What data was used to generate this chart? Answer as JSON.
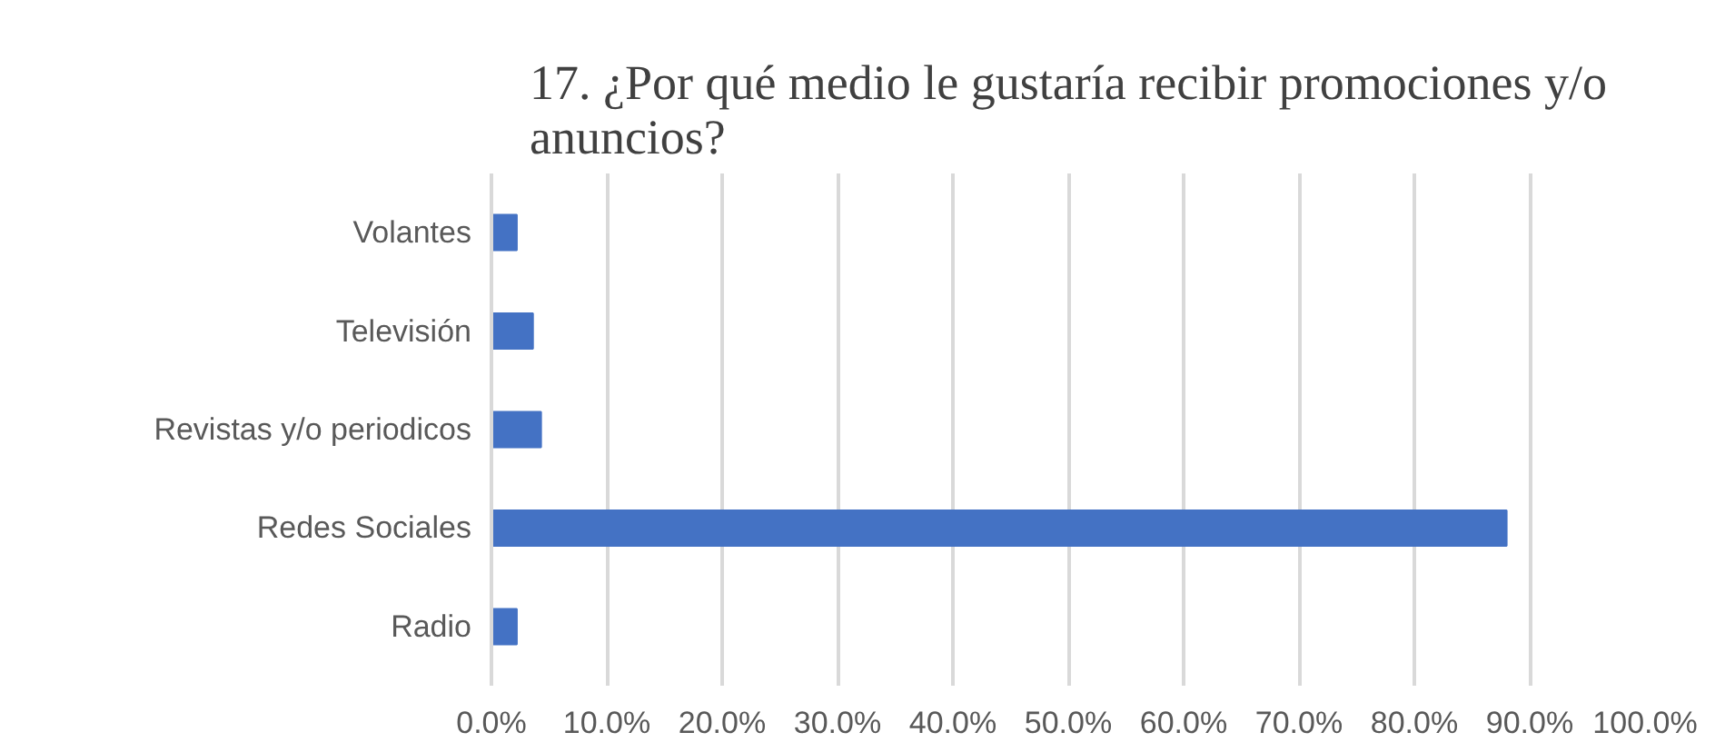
{
  "chart_data": {
    "type": "bar",
    "orientation": "horizontal",
    "title": "17. ¿Por qué medio le gustaría recibir promociones y/o anuncios?",
    "categories": [
      "Volantes",
      "Televisión",
      "Revistas y/o periodicos",
      "Redes Sociales",
      "Radio"
    ],
    "values": [
      0.022,
      0.036,
      0.043,
      0.88,
      0.022
    ],
    "color": "#4472c4",
    "xlim": [
      0,
      1
    ],
    "xticks": [
      {
        "value": 0,
        "label": "0.0%"
      },
      {
        "value": 0.1,
        "label": "10.0%"
      },
      {
        "value": 0.2,
        "label": "20.0%"
      },
      {
        "value": 0.3,
        "label": "30.0%"
      },
      {
        "value": 0.4,
        "label": "40.0%"
      },
      {
        "value": 0.5,
        "label": "50.0%"
      },
      {
        "value": 0.6,
        "label": "60.0%"
      },
      {
        "value": 0.7,
        "label": "70.0%"
      },
      {
        "value": 0.8,
        "label": "80.0%"
      },
      {
        "value": 0.9,
        "label": "90.0%"
      },
      {
        "value": 1,
        "label": "100.0%"
      }
    ],
    "grid": "x"
  }
}
